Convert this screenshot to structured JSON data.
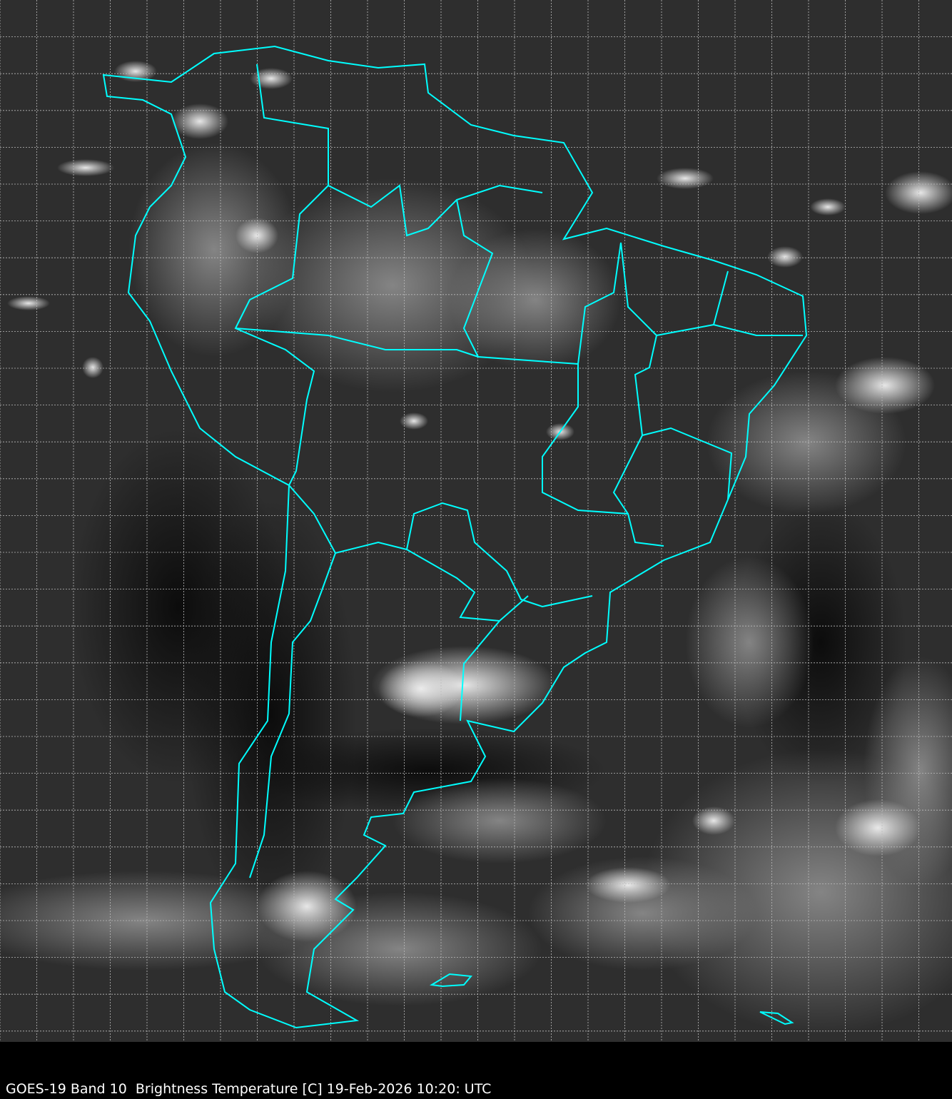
{
  "caption": "GOES-19 Band 10  Brightness Temperature [C] 19-Feb-2026 10:20: UTC",
  "colors": {
    "background": "#2e2e2e",
    "boundaries": "#00ffff",
    "grid": "#bbbbbb",
    "clouds": "#e8e8e8"
  },
  "map": {
    "region": "South America",
    "gridlines": true,
    "grid_style": "dashed"
  }
}
